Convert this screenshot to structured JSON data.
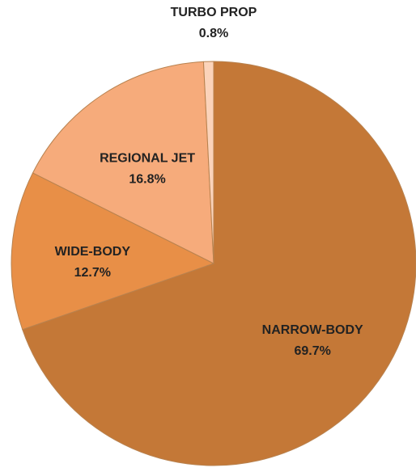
{
  "chart_data": {
    "type": "pie",
    "categories": [
      "NARROW-BODY",
      "WIDE-BODY",
      "REGIONAL JET",
      "TURBO PROP"
    ],
    "values": [
      69.7,
      12.7,
      16.8,
      0.8
    ],
    "value_labels": [
      "69.7%",
      "12.7%",
      "16.8%",
      "0.8%"
    ],
    "colors": [
      "#c47837",
      "#e88f47",
      "#f6ab7b",
      "#fbd3ba"
    ]
  }
}
